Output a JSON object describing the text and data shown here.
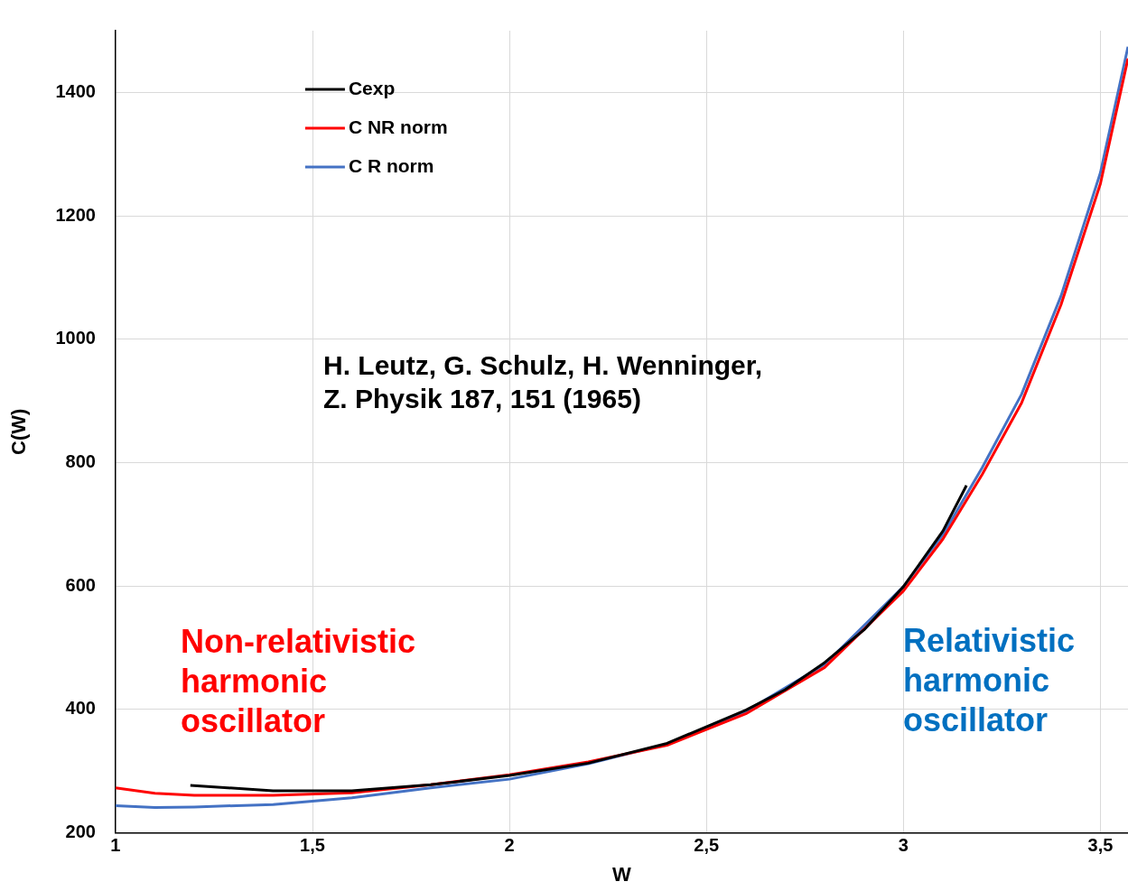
{
  "chart_data": {
    "type": "line",
    "xlabel": "W",
    "ylabel": "C(W)",
    "xlim": [
      1,
      3.57
    ],
    "ylim": [
      200,
      1500
    ],
    "xticks": [
      1,
      {
        "value": 1.5,
        "label": "1,5"
      },
      2,
      {
        "value": 2.5,
        "label": "2,5"
      },
      3,
      {
        "value": 3.5,
        "label": "3,5"
      }
    ],
    "yticks": [
      200,
      400,
      600,
      800,
      1000,
      1200,
      1400
    ],
    "grid": true,
    "legend": "top left",
    "marker": "none",
    "line_style": "solid",
    "annotations": [
      "H. Leutz, G. Schulz, H. Wenninger,\nZ. Physik 187, 151 (1965)",
      "Non-relativistic\nharmonic\noscillator",
      "Relativistic\nharmonic\noscillator"
    ],
    "series": [
      {
        "name": "Cexp",
        "color": "#000000",
        "x": [
          1.19,
          1.4,
          1.6,
          1.8,
          2.0,
          2.2,
          2.4,
          2.6,
          2.7,
          2.8,
          2.9,
          3.0,
          3.1,
          3.16
        ],
        "values": [
          277,
          268,
          268,
          278,
          293,
          313,
          345,
          399,
          432,
          476,
          529,
          599,
          689,
          763
        ]
      },
      {
        "name": "C NR norm",
        "color": "#ff0000",
        "x": [
          1,
          1.1,
          1.2,
          1.4,
          1.6,
          1.8,
          2.0,
          2.2,
          2.4,
          2.6,
          2.8,
          3.0,
          3.1,
          3.2,
          3.3,
          3.4,
          3.5,
          3.57
        ],
        "values": [
          273,
          264,
          261,
          261,
          265,
          278,
          294,
          315,
          342,
          393,
          468,
          592,
          676,
          781,
          897,
          1056,
          1252,
          1455
        ]
      },
      {
        "name": "C R norm",
        "color": "#4472c4",
        "x": [
          1,
          1.1,
          1.2,
          1.4,
          1.6,
          1.8,
          2.0,
          2.2,
          2.4,
          2.6,
          2.8,
          3.0,
          3.1,
          3.2,
          3.3,
          3.4,
          3.5,
          3.57
        ],
        "values": [
          244,
          241,
          242,
          246,
          257,
          273,
          287,
          312,
          344,
          397,
          473,
          599,
          683,
          792,
          911,
          1070,
          1270,
          1474
        ]
      }
    ]
  }
}
